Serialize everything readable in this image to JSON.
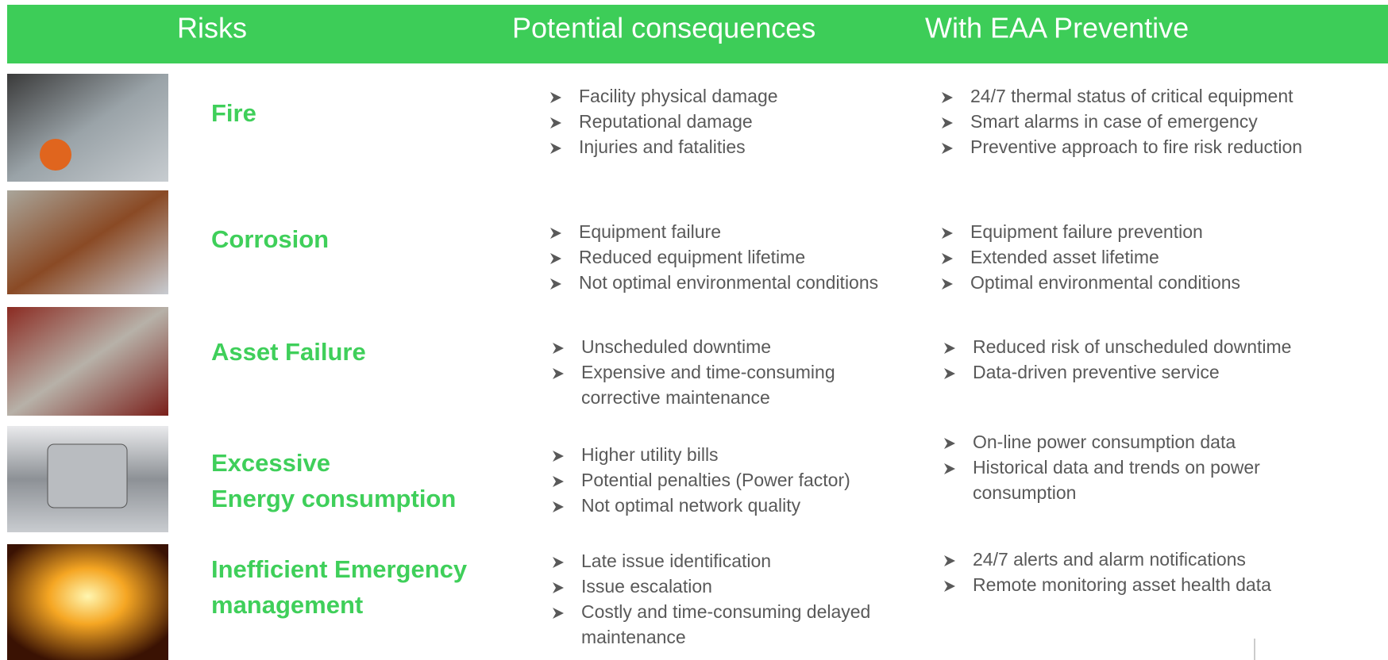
{
  "header": {
    "columns": [
      "Risks",
      "Potential consequences",
      "With EAA Preventive"
    ]
  },
  "rows": [
    {
      "risk": [
        "Fire"
      ],
      "consequences": [
        [
          "Facility physical damage"
        ],
        [
          "Reputational damage"
        ],
        [
          "Injuries and fatalities"
        ]
      ],
      "preventive": [
        [
          "24/7 thermal status of critical equipment"
        ],
        [
          "Smart alarms in case of emergency"
        ],
        [
          "Preventive approach to fire risk reduction"
        ]
      ]
    },
    {
      "risk": [
        "Corrosion"
      ],
      "consequences": [
        [
          "Equipment failure"
        ],
        [
          "Reduced equipment lifetime"
        ],
        [
          "Not optimal environmental conditions"
        ]
      ],
      "preventive": [
        [
          "Equipment failure prevention"
        ],
        [
          "Extended asset lifetime"
        ],
        [
          "Optimal environmental conditions"
        ]
      ]
    },
    {
      "risk": [
        "Asset Failure"
      ],
      "consequences": [
        [
          "Unscheduled downtime"
        ],
        [
          "Expensive and time-consuming",
          "corrective maintenance"
        ]
      ],
      "preventive": [
        [
          "Reduced risk of unscheduled downtime"
        ],
        [
          "Data-driven preventive service"
        ]
      ]
    },
    {
      "risk": [
        "Excessive",
        "Energy consumption"
      ],
      "consequences": [
        [
          "Higher utility bills"
        ],
        [
          "Potential penalties (Power factor)"
        ],
        [
          "Not optimal network quality"
        ]
      ],
      "preventive": [
        [
          "On-line power consumption data"
        ],
        [
          "Historical data and trends on power",
          "consumption"
        ]
      ]
    },
    {
      "risk": [
        "Inefficient Emergency",
        "management"
      ],
      "consequences": [
        [
          "Late issue identification"
        ],
        [
          "Issue escalation"
        ],
        [
          "Costly and time-consuming delayed",
          "maintenance"
        ]
      ],
      "preventive": [
        [
          "24/7 alerts and alarm notifications"
        ],
        [
          "Remote monitoring asset health data"
        ]
      ]
    }
  ]
}
